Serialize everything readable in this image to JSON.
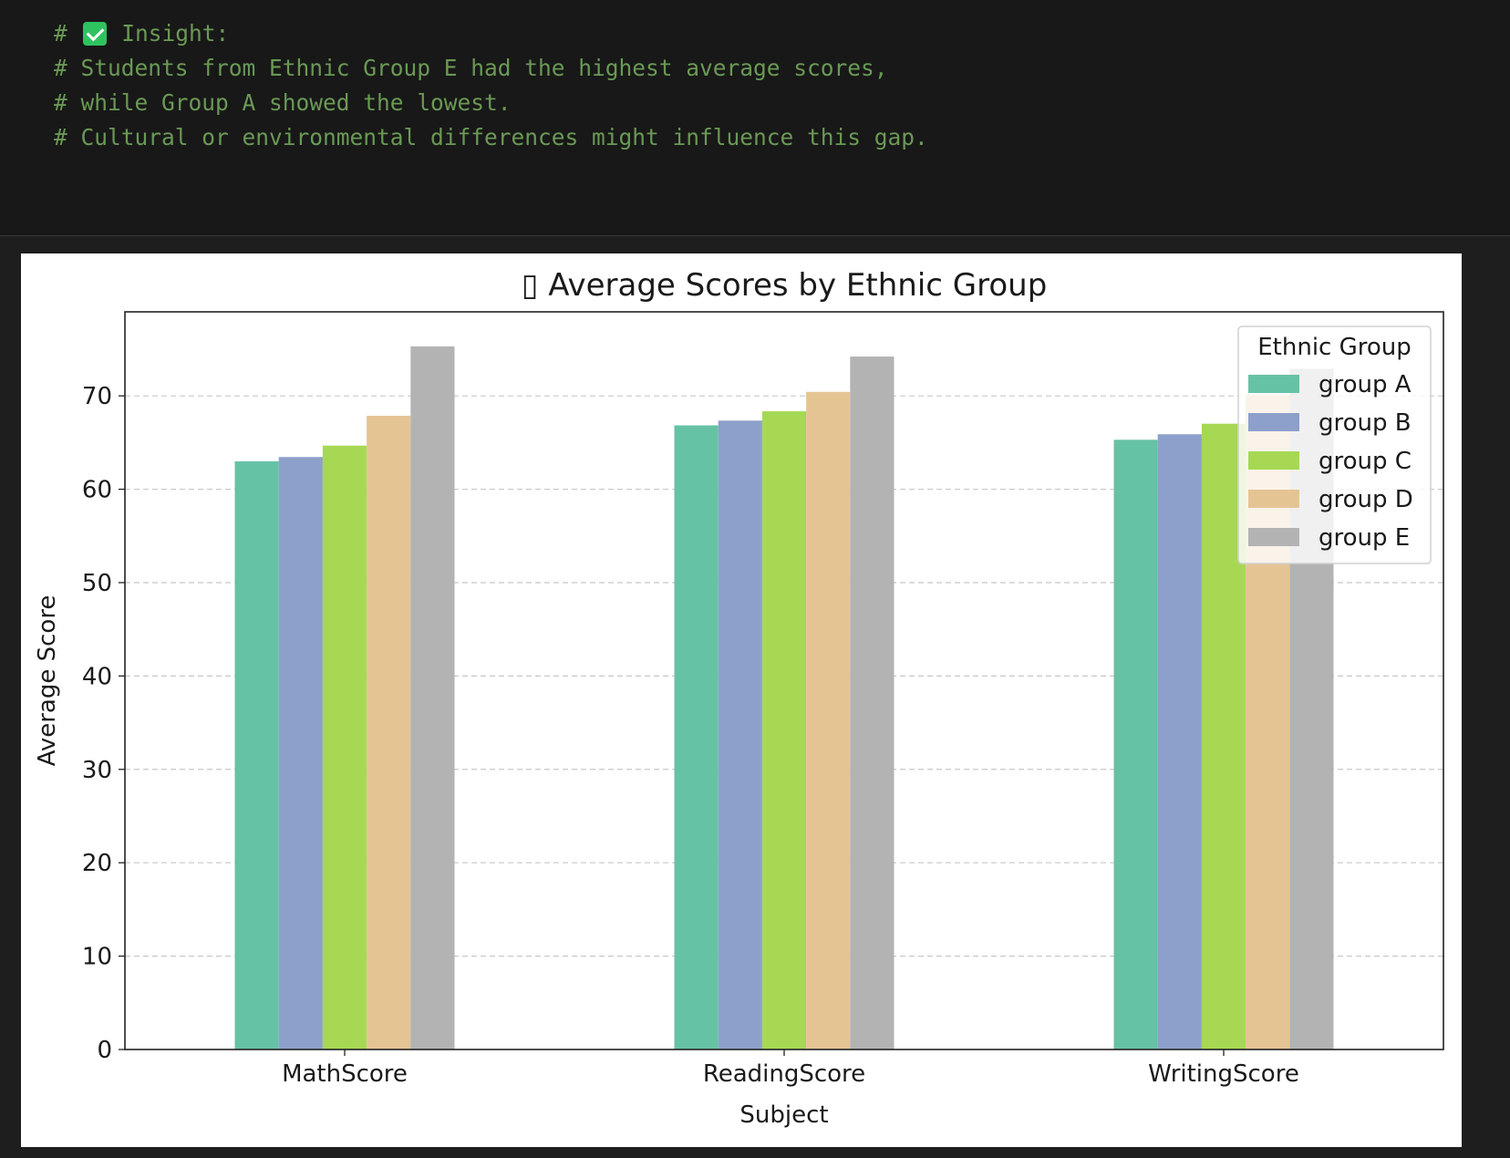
{
  "code_cell": {
    "lines": [
      {
        "hash": "#",
        "icon": "check-mark-button-icon",
        "text": "Insight:"
      },
      {
        "text": "# Students from Ethnic Group E had the highest average scores,"
      },
      {
        "text": "# while Group A showed the lowest."
      },
      {
        "text": "# Cultural or environmental differences might influence this gap."
      }
    ]
  },
  "colors": {
    "comment": "#6a9955",
    "editor_bg": "#181818",
    "output_bg": "#1e1e1e"
  },
  "chart_data": {
    "type": "bar",
    "title": "▯ Average Scores by Ethnic Group",
    "xlabel": "Subject",
    "ylabel": "Average Score",
    "categories": [
      "MathScore",
      "ReadingScore",
      "WritingScore"
    ],
    "series": [
      {
        "name": "group A",
        "color": "#66c2a5",
        "values": [
          62.99,
          66.84,
          65.3
        ]
      },
      {
        "name": "group B",
        "color": "#8da0cb",
        "values": [
          63.45,
          67.35,
          65.89
        ]
      },
      {
        "name": "group C",
        "color": "#a6d854",
        "values": [
          64.67,
          68.35,
          67.02
        ]
      },
      {
        "name": "group D",
        "color": "#e5c494",
        "values": [
          67.87,
          70.43,
          70.15
        ]
      },
      {
        "name": "group E",
        "color": "#b3b3b3",
        "values": [
          75.3,
          74.21,
          72.9
        ]
      }
    ],
    "ylim": [
      0,
      79
    ],
    "yticks": [
      0,
      10,
      20,
      30,
      40,
      50,
      60,
      70
    ],
    "grid": "y-dashed",
    "legend": {
      "title": "Ethnic Group",
      "placement": "upper right"
    }
  }
}
